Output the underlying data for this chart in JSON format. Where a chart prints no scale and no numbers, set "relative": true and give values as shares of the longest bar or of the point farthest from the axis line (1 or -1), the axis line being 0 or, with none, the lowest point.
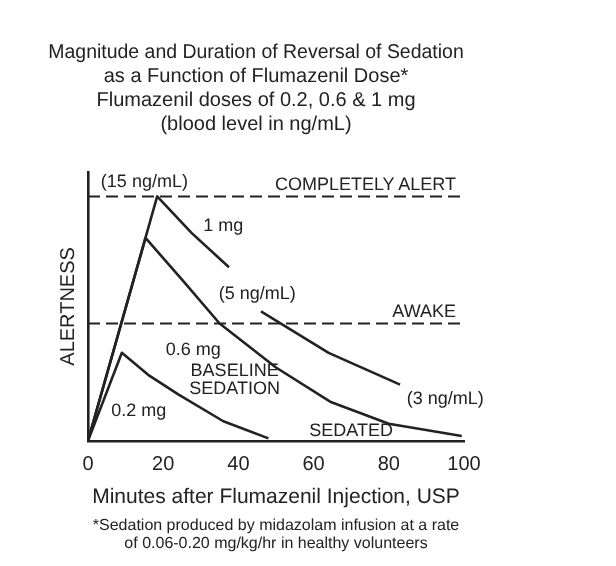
{
  "chart_data": {
    "type": "line",
    "title": "Magnitude and Duration of Reversal of Sedation as a Function of Flumazenil Dose*",
    "subtitle": "Flumazenil doses of 0.2, 0.6 & 1 mg (blood level in ng/mL)",
    "xlabel": "Minutes after Flumazenil Injection, USP",
    "ylabel": "ALERTNESS",
    "relative": true,
    "xlim": [
      0,
      100
    ],
    "xticks": [
      0,
      20,
      40,
      60,
      80,
      100
    ],
    "grid": false,
    "legend": false,
    "marker": "none",
    "line_style": "solid",
    "series": [
      {
        "name": "1 mg",
        "color": "#222222",
        "x": [
          0,
          18.4,
          27.6,
          37.5,
          null,
          46,
          64,
          83
        ],
        "values": [
          0,
          1,
          0.85,
          0.71,
          null,
          0.53,
          0.36,
          0.23
        ]
      },
      {
        "name": "0.6 mg",
        "color": "#222222",
        "x": [
          0,
          15.3,
          25,
          35,
          50,
          64.4,
          80,
          99.4
        ],
        "values": [
          0,
          0.83,
          0.66,
          0.48,
          0.3,
          0.16,
          0.07,
          0.02
        ]
      },
      {
        "name": "0.2 mg",
        "color": "#222222",
        "x": [
          0,
          9,
          16,
          24,
          36,
          48
        ],
        "values": [
          0,
          0.36,
          0.27,
          0.19,
          0.08,
          0.01
        ]
      }
    ],
    "ref_lines": [
      {
        "axis": "y",
        "value": 1,
        "label": "COMPLETELY ALERT",
        "line_style": "dashed"
      },
      {
        "axis": "y",
        "value": 0.48,
        "label": "AWAKE",
        "line_style": "dashed"
      }
    ],
    "annotations": [
      "(15 ng/mL)",
      "(5 ng/mL)",
      "(3 ng/mL)",
      "BASELINE SEDATION",
      "SEDATED",
      "*Sedation produced by midazolam infusion at a rate of 0.06-0.20 mg/kg/hr in healthy volunteers"
    ]
  }
}
